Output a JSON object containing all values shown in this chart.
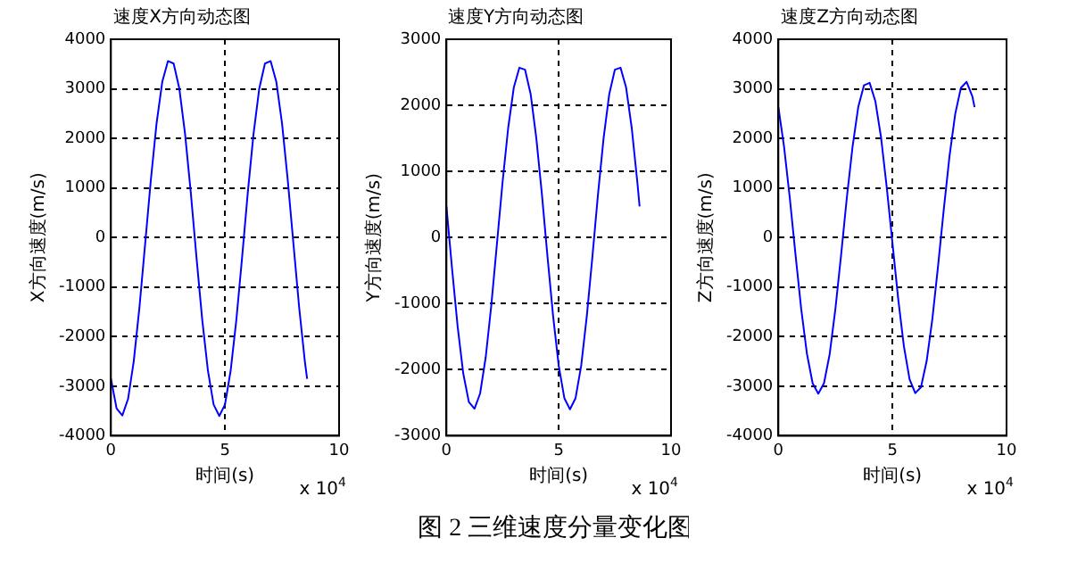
{
  "chart_data": [
    {
      "type": "line",
      "title": "速度X方向动态图",
      "xlabel": "时间(s)",
      "ylabel": "X方向速度(m/s)",
      "xlim": [
        0,
        10
      ],
      "xticks": [
        0,
        5,
        10
      ],
      "ylim": [
        -4000,
        4000
      ],
      "yticks": [
        -4000,
        -3000,
        -2000,
        -1000,
        0,
        1000,
        2000,
        3000,
        4000
      ],
      "grid": true,
      "annotations": [
        "x 10$^{4}$"
      ],
      "x": [
        0,
        0.25,
        0.5,
        0.75,
        1,
        1.25,
        1.5,
        1.75,
        2,
        2.25,
        2.5,
        2.75,
        3,
        3.25,
        3.5,
        3.75,
        4,
        4.25,
        4.5,
        4.75,
        5,
        5.25,
        5.5,
        5.75,
        6,
        6.25,
        6.5,
        6.75,
        7,
        7.25,
        7.5,
        7.75,
        8,
        8.25,
        8.5,
        8.6
      ],
      "series": [
        {
          "color": "#0000ff",
          "values": [
            -2850,
            -3450,
            -3590,
            -3260,
            -2500,
            -1410,
            -130,
            1160,
            2300,
            3140,
            3560,
            3510,
            3000,
            2090,
            910,
            -400,
            -1650,
            -2680,
            -3370,
            -3600,
            -3370,
            -2680,
            -1650,
            -400,
            910,
            2090,
            3000,
            3510,
            3560,
            3140,
            2300,
            1160,
            -130,
            -1410,
            -2500,
            -2850
          ]
        }
      ]
    },
    {
      "type": "line",
      "title": "速度Y方向动态图",
      "xlabel": "时间(s)",
      "ylabel": "Y方向速度(m/s)",
      "xlim": [
        0,
        10
      ],
      "xticks": [
        0,
        5,
        10
      ],
      "ylim": [
        -3000,
        3000
      ],
      "yticks": [
        -3000,
        -2000,
        -1000,
        0,
        1000,
        2000,
        3000
      ],
      "grid": true,
      "annotations": [
        "x 10$^{4}$",
        "图 2 三维速度分量变化图"
      ],
      "x": [
        0,
        0.25,
        0.5,
        0.75,
        1,
        1.25,
        1.5,
        1.75,
        2,
        2.25,
        2.5,
        2.75,
        3,
        3.25,
        3.5,
        3.75,
        4,
        4.25,
        4.5,
        4.75,
        5,
        5.25,
        5.5,
        5.75,
        6,
        6.25,
        6.5,
        6.75,
        7,
        7.25,
        7.5,
        7.75,
        8,
        8.25,
        8.5,
        8.6
      ],
      "series": [
        {
          "color": "#0000ff",
          "values": [
            470,
            -470,
            -1350,
            -2060,
            -2490,
            -2590,
            -2360,
            -1810,
            -1020,
            -90,
            840,
            1660,
            2270,
            2570,
            2540,
            2170,
            1510,
            660,
            -290,
            -1190,
            -1940,
            -2430,
            -2600,
            -2430,
            -1940,
            -1190,
            -290,
            660,
            1510,
            2170,
            2540,
            2570,
            2270,
            1660,
            840,
            470
          ]
        }
      ]
    },
    {
      "type": "line",
      "title": "速度Z方向动态图",
      "xlabel": "时间(s)",
      "ylabel": "Z方向速度(m/s)",
      "xlim": [
        0,
        10
      ],
      "xticks": [
        0,
        5,
        10
      ],
      "ylim": [
        -4000,
        4000
      ],
      "yticks": [
        -4000,
        -3000,
        -2000,
        -1000,
        0,
        1000,
        2000,
        3000,
        4000
      ],
      "grid": true,
      "annotations": [
        "x 10$^{4}$"
      ],
      "x": [
        0,
        0.25,
        0.5,
        0.75,
        1,
        1.25,
        1.5,
        1.75,
        2,
        2.25,
        2.5,
        2.75,
        3,
        3.25,
        3.5,
        3.75,
        4,
        4.25,
        4.5,
        4.75,
        5,
        5.25,
        5.5,
        5.75,
        6,
        6.25,
        6.5,
        6.75,
        7,
        7.25,
        7.5,
        7.75,
        8,
        8.25,
        8.5,
        8.6
      ],
      "series": [
        {
          "color": "#0000ff",
          "values": [
            2630,
            1830,
            800,
            -340,
            -1440,
            -2340,
            -2940,
            -3150,
            -2940,
            -2350,
            -1440,
            -350,
            800,
            1830,
            2630,
            3070,
            3120,
            2750,
            2020,
            1010,
            -110,
            -1230,
            -2190,
            -2860,
            -3140,
            -3020,
            -2490,
            -1640,
            -570,
            570,
            1640,
            2490,
            3020,
            3140,
            2850,
            2630
          ]
        }
      ]
    }
  ]
}
